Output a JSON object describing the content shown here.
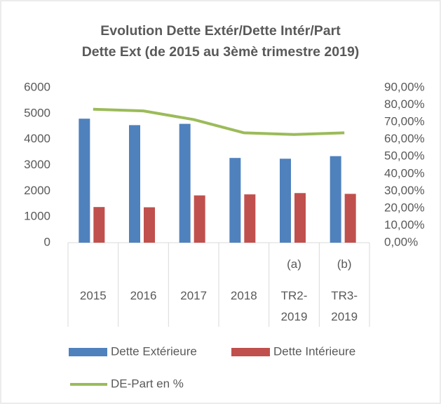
{
  "chart_data": {
    "type": "bar-line",
    "title": [
      "Evolution Dette Extér/Dette Intér/Part",
      "Dette Ext (de 2015 au 3èmè trimestre 2019)"
    ],
    "categories": [
      "2015",
      "2016",
      "2017",
      "2018",
      "TR2-2019",
      "TR3-2019"
    ],
    "category_notes": [
      null,
      null,
      null,
      null,
      "(a)",
      "(b)"
    ],
    "series": [
      {
        "name": "Dette Extérieure",
        "type": "bar",
        "color": "#4f81bd",
        "values": [
          4800,
          4550,
          4600,
          3280,
          3250,
          3350
        ]
      },
      {
        "name": "Dette Intérieure",
        "type": "bar",
        "color": "#c0504d",
        "values": [
          1380,
          1370,
          1830,
          1870,
          1920,
          1890
        ]
      },
      {
        "name": "DE-Part en %",
        "type": "line",
        "axis": "y2",
        "color": "#9bbb59",
        "values": [
          77.5,
          76.5,
          71.5,
          63.8,
          62.8,
          63.8
        ]
      }
    ],
    "ylim": [
      0,
      6000
    ],
    "yticks": [
      0,
      1000,
      2000,
      3000,
      4000,
      5000,
      6000
    ],
    "y2lim": [
      0,
      90
    ],
    "y2ticks": [
      {
        "value": 0,
        "label": "0,00%"
      },
      {
        "value": 10,
        "label": "10,00%"
      },
      {
        "value": 20,
        "label": "20,00%"
      },
      {
        "value": 30,
        "label": "30,00%"
      },
      {
        "value": 40,
        "label": "40,00%"
      },
      {
        "value": 50,
        "label": "50,00%"
      },
      {
        "value": 60,
        "label": "60,00%"
      },
      {
        "value": 70,
        "label": "70,00%"
      },
      {
        "value": 80,
        "label": "80,00%"
      },
      {
        "value": 90,
        "label": "90,00%"
      }
    ],
    "grid": false,
    "legend": "bottom"
  }
}
